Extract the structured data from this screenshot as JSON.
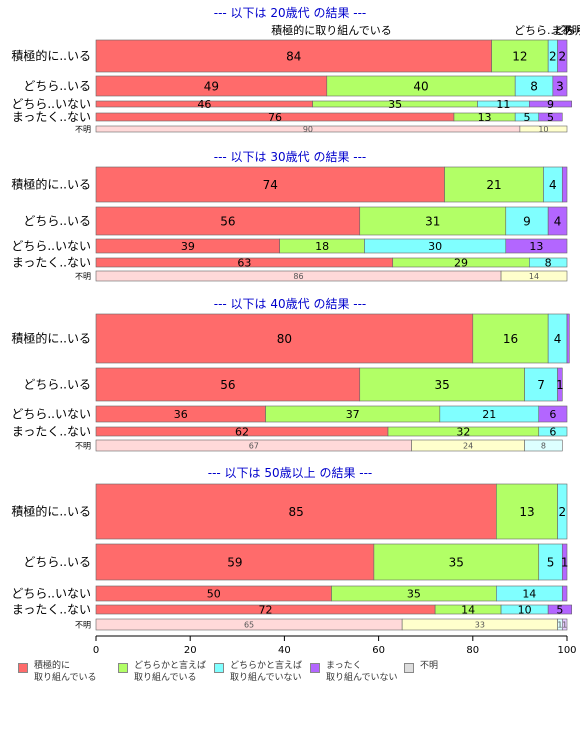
{
  "colors": {
    "cat1": "#FF6B6B",
    "cat2": "#B2FF66",
    "cat3": "#80FFFF",
    "cat4": "#B366FF",
    "cat5": "#DDDDDD",
    "title": "#0000CC"
  },
  "chart_data": {
    "type": "bar",
    "orientation": "horizontal",
    "stacked": true,
    "xlim": [
      0,
      100
    ],
    "xticks": [
      "0",
      "20",
      "40",
      "60",
      "80",
      "100"
    ],
    "legend_position": "bottom",
    "legend": [
      "積極的に\n取り組んでいる",
      "どちらかと言えば\n取り組んでいる",
      "どちらかと言えば\n取り組んでいない",
      "まったく\n取り組んでいない",
      "不明"
    ],
    "panels": [
      {
        "title": "--- 以下は 20歳代 の結果 ---",
        "column_header": "積極的に取り組んでいる",
        "rows": [
          {
            "label": "積極的に..いる",
            "values": [
              84,
              12,
              2,
              2,
              0
            ],
            "labels": [
              "84",
              "12",
              "2",
              "2",
              ""
            ]
          },
          {
            "label": "どちら..いる",
            "values": [
              49,
              40,
              8,
              3,
              0
            ],
            "labels": [
              "49",
              "40",
              "8",
              "3",
              ""
            ]
          },
          {
            "label": "どちら..いない",
            "values": [
              46,
              35,
              11,
              9,
              0
            ],
            "labels": [
              "46",
              "35",
              "11",
              "9",
              ""
            ]
          },
          {
            "label": "まったく..ない",
            "values": [
              76,
              13,
              5,
              5,
              0
            ],
            "labels": [
              "76",
              "13",
              "5",
              "5",
              ""
            ]
          },
          {
            "label": "不明",
            "values": [
              90,
              10,
              0,
              0,
              0
            ],
            "labels": [
              "90",
              "10",
              "",
              "",
              ""
            ],
            "is_unknown": true
          }
        ],
        "extra_headers": [
          {
            "text": "どちら..どちら",
            "x_value": 96.5
          },
          {
            "text": "まあ",
            "x_value": 99
          },
          {
            "text": "不明",
            "x_value": 101
          }
        ]
      },
      {
        "title": "--- 以下は 30歳代 の結果 ---",
        "column_header": "",
        "rows": [
          {
            "label": "積極的に..いる",
            "values": [
              74,
              21,
              4,
              1,
              0
            ],
            "labels": [
              "74",
              "21",
              "4",
              "",
              ""
            ]
          },
          {
            "label": "どちら..いる",
            "values": [
              56,
              31,
              9,
              4,
              0
            ],
            "labels": [
              "56",
              "31",
              "9",
              "4",
              ""
            ]
          },
          {
            "label": "どちら..いない",
            "values": [
              39,
              18,
              30,
              13,
              0
            ],
            "labels": [
              "39",
              "18",
              "30",
              "13",
              ""
            ]
          },
          {
            "label": "まったく..ない",
            "values": [
              63,
              29,
              8,
              0,
              0
            ],
            "labels": [
              "63",
              "29",
              "8",
              "",
              ""
            ]
          },
          {
            "label": "不明",
            "values": [
              86,
              14,
              0,
              0,
              0
            ],
            "labels": [
              "86",
              "14",
              "",
              "",
              ""
            ],
            "is_unknown": true
          }
        ]
      },
      {
        "title": "--- 以下は 40歳代 の結果 ---",
        "column_header": "",
        "rows": [
          {
            "label": "積極的に..いる",
            "values": [
              80,
              16,
              4,
              0.5,
              0
            ],
            "labels": [
              "80",
              "16",
              "4",
              "",
              ""
            ]
          },
          {
            "label": "どちら..いる",
            "values": [
              56,
              35,
              7,
              1,
              0
            ],
            "labels": [
              "56",
              "35",
              "7",
              "1",
              ""
            ]
          },
          {
            "label": "どちら..いない",
            "values": [
              36,
              37,
              21,
              6,
              0
            ],
            "labels": [
              "36",
              "37",
              "21",
              "6",
              ""
            ]
          },
          {
            "label": "まったく..ない",
            "values": [
              62,
              32,
              6,
              0,
              0
            ],
            "labels": [
              "62",
              "32",
              "6",
              "",
              ""
            ]
          },
          {
            "label": "不明",
            "values": [
              67,
              24,
              8,
              0,
              0
            ],
            "labels": [
              "67",
              "24",
              "8",
              "",
              ""
            ],
            "is_unknown": true
          }
        ]
      },
      {
        "title": "--- 以下は 50歳以上 の結果 ---",
        "column_header": "",
        "rows": [
          {
            "label": "積極的に..いる",
            "values": [
              85,
              13,
              2,
              0,
              0
            ],
            "labels": [
              "85",
              "13",
              "2",
              "",
              ""
            ]
          },
          {
            "label": "どちら..いる",
            "values": [
              59,
              35,
              5,
              1,
              0
            ],
            "labels": [
              "59",
              "35",
              "5",
              "1",
              ""
            ]
          },
          {
            "label": "どちら..いない",
            "values": [
              50,
              35,
              14,
              1,
              0
            ],
            "labels": [
              "50",
              "35",
              "14",
              "",
              ""
            ]
          },
          {
            "label": "まったく..ない",
            "values": [
              72,
              14,
              10,
              5,
              0
            ],
            "labels": [
              "72",
              "14",
              "10",
              "5",
              ""
            ]
          },
          {
            "label": "不明",
            "values": [
              65,
              33,
              1,
              1,
              0
            ],
            "labels": [
              "65",
              "33",
              "1",
              "1",
              ""
            ],
            "is_unknown": true
          }
        ]
      }
    ]
  }
}
